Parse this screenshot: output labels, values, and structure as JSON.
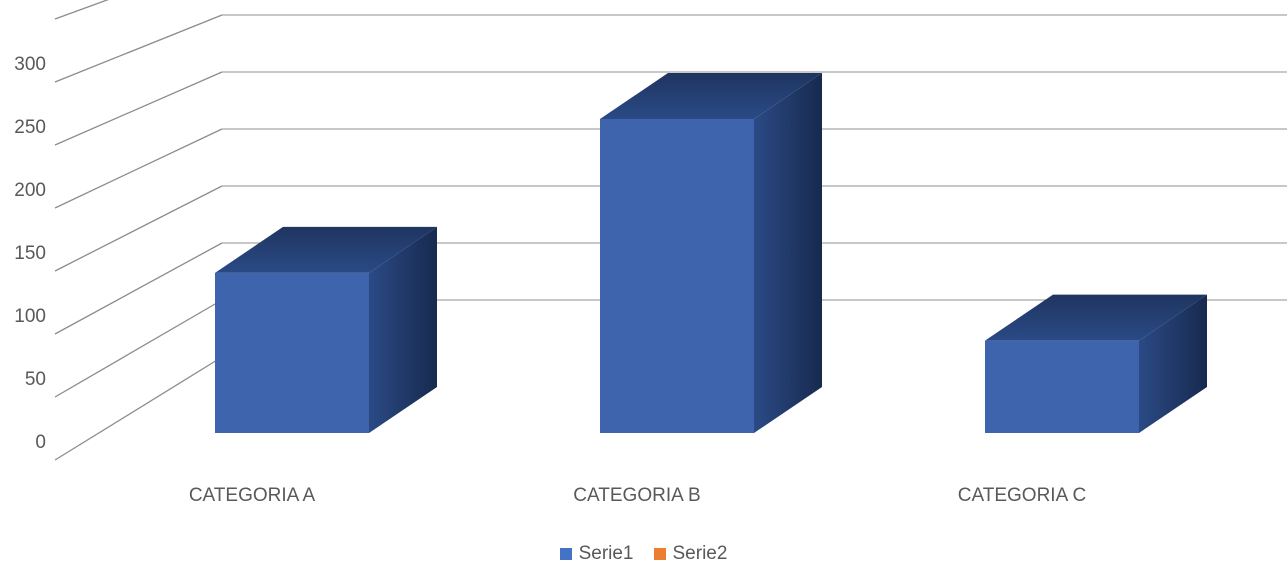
{
  "chart_data": {
    "type": "bar",
    "style": "3d-column",
    "categories": [
      "CATEGORIA A",
      "CATEGORIA B",
      "CATEGORIA C"
    ],
    "series": [
      {
        "name": "Serie1",
        "values": [
          130,
          255,
          75
        ],
        "color": "#4472C4"
      },
      {
        "name": "Serie2",
        "values": [
          null,
          null,
          null
        ],
        "color": "#ED7D31"
      }
    ],
    "yticks": [
      0,
      50,
      100,
      150,
      200,
      250,
      300
    ],
    "ylim": [
      0,
      300
    ],
    "grid": true,
    "legend_position": "bottom",
    "title": "",
    "xlabel": "",
    "ylabel": ""
  }
}
